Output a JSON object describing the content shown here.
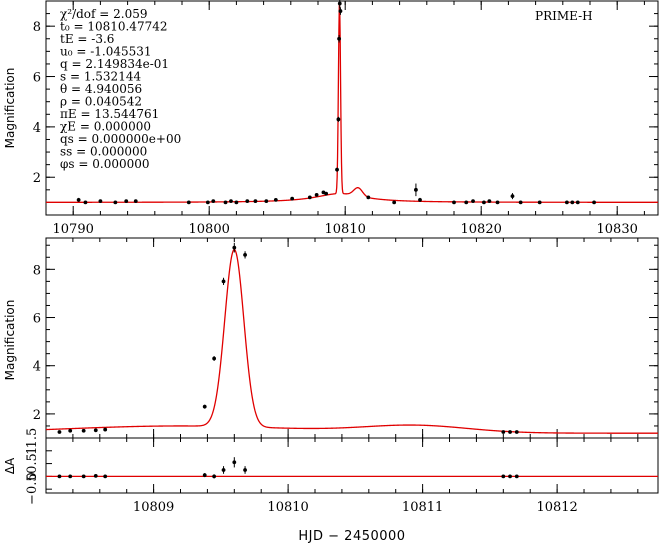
{
  "figure": {
    "label": "PRIME-H",
    "xtitle": "HJD − 2450000",
    "ylabel_mag": "Magnification",
    "ylabel_res": "ΔA",
    "params": [
      "χ²/dof = 2.059",
      "t₀ = 10810.47742",
      "tE = -3.6",
      "u₀ = -1.045531",
      "q = 2.149834e-01",
      "s = 1.532144",
      "θ = 4.940056",
      "ρ = 0.040542",
      "πE = 13.544761",
      "χE = 0.000000",
      "qs = 0.000000e+00",
      "ss = 0.000000",
      "φs = 0.000000"
    ]
  },
  "colors": {
    "model": "#e00000",
    "points": "#000000",
    "axes": "#000000"
  },
  "chart_data": [
    {
      "type": "line",
      "panel": "top",
      "ylabel": "Magnification",
      "xlim": [
        10788,
        10833
      ],
      "ylim": [
        0.5,
        9.0
      ],
      "xticks": [
        10790,
        10800,
        10810,
        10820,
        10830
      ],
      "yticks": [
        2,
        4,
        6,
        8
      ],
      "grid": false,
      "series": [
        {
          "name": "PRIME-H",
          "kind": "points",
          "x": [
            10790.4,
            10790.9,
            10792.0,
            10793.1,
            10793.9,
            10794.6,
            10798.5,
            10799.9,
            10800.3,
            10801.2,
            10801.6,
            10802.0,
            10802.8,
            10803.4,
            10804.2,
            10804.9,
            10806.1,
            10807.4,
            10807.9,
            10808.4,
            10808.6,
            10809.4,
            10809.5,
            10809.55,
            10809.6,
            10809.65,
            10811.7,
            10813.6,
            10815.2,
            10815.5,
            10818.0,
            10818.9,
            10819.4,
            10820.2,
            10820.6,
            10821.2,
            10822.3,
            10822.9,
            10824.3,
            10826.3,
            10826.7,
            10827.1,
            10828.3
          ],
          "y": [
            1.1,
            1.0,
            1.05,
            1.0,
            1.05,
            1.05,
            1.0,
            1.0,
            1.05,
            1.0,
            1.05,
            1.0,
            1.05,
            1.05,
            1.05,
            1.1,
            1.15,
            1.2,
            1.3,
            1.4,
            1.35,
            2.3,
            4.3,
            7.5,
            8.9,
            8.6,
            1.2,
            1.0,
            1.5,
            1.1,
            1.0,
            1.0,
            1.05,
            1.0,
            1.05,
            1.0,
            1.25,
            1.0,
            1.0,
            1.0,
            1.0,
            1.0,
            1.0
          ],
          "err": [
            0.08,
            0.05,
            0.05,
            0.05,
            0.05,
            0.05,
            0.05,
            0.05,
            0.05,
            0.05,
            0.05,
            0.05,
            0.05,
            0.05,
            0.05,
            0.05,
            0.05,
            0.05,
            0.05,
            0.05,
            0.05,
            0.08,
            0.1,
            0.15,
            0.2,
            0.15,
            0.05,
            0.05,
            0.25,
            0.08,
            0.05,
            0.05,
            0.05,
            0.05,
            0.05,
            0.05,
            0.12,
            0.05,
            0.05,
            0.05,
            0.05,
            0.05,
            0.05
          ]
        }
      ]
    },
    {
      "type": "line",
      "panel": "middle",
      "ylabel": "Magnification",
      "xlim": [
        10808.2,
        10812.75
      ],
      "ylim": [
        1.0,
        9.3
      ],
      "xticks": [
        10809,
        10810,
        10811,
        10812
      ],
      "yticks": [
        2,
        4,
        6,
        8
      ],
      "grid": false,
      "series": [
        {
          "name": "PRIME-H",
          "kind": "points",
          "x": [
            10808.3,
            10808.38,
            10808.48,
            10808.57,
            10808.64,
            10809.38,
            10809.45,
            10809.52,
            10809.6,
            10809.68,
            10811.6,
            10811.65,
            10811.7
          ],
          "y": [
            1.25,
            1.3,
            1.3,
            1.32,
            1.35,
            2.3,
            4.3,
            7.5,
            8.9,
            8.6,
            1.25,
            1.25,
            1.25
          ],
          "err": [
            0.05,
            0.05,
            0.05,
            0.05,
            0.05,
            0.08,
            0.1,
            0.15,
            0.2,
            0.15,
            0.05,
            0.05,
            0.05
          ]
        }
      ]
    },
    {
      "type": "scatter",
      "panel": "residual",
      "ylabel": "ΔA",
      "xlim": [
        10808.2,
        10812.75
      ],
      "ylim": [
        -0.65,
        1.5
      ],
      "ytick_labels": [
        "−0.5",
        "0",
        "0.5",
        "1",
        "1.5"
      ],
      "xticks": [
        10809,
        10810,
        10811,
        10812
      ],
      "grid": false,
      "series": [
        {
          "name": "PRIME-H",
          "x": [
            10808.3,
            10808.38,
            10808.48,
            10808.57,
            10808.64,
            10809.38,
            10809.45,
            10809.52,
            10809.6,
            10809.68,
            10811.6,
            10811.65,
            10811.7
          ],
          "y": [
            0.0,
            0.0,
            0.0,
            0.02,
            0.0,
            0.05,
            0.0,
            0.25,
            0.55,
            0.25,
            0.0,
            0.0,
            0.0
          ],
          "err": [
            0.05,
            0.05,
            0.05,
            0.05,
            0.05,
            0.08,
            0.08,
            0.15,
            0.2,
            0.15,
            0.05,
            0.05,
            0.05
          ]
        }
      ]
    }
  ]
}
